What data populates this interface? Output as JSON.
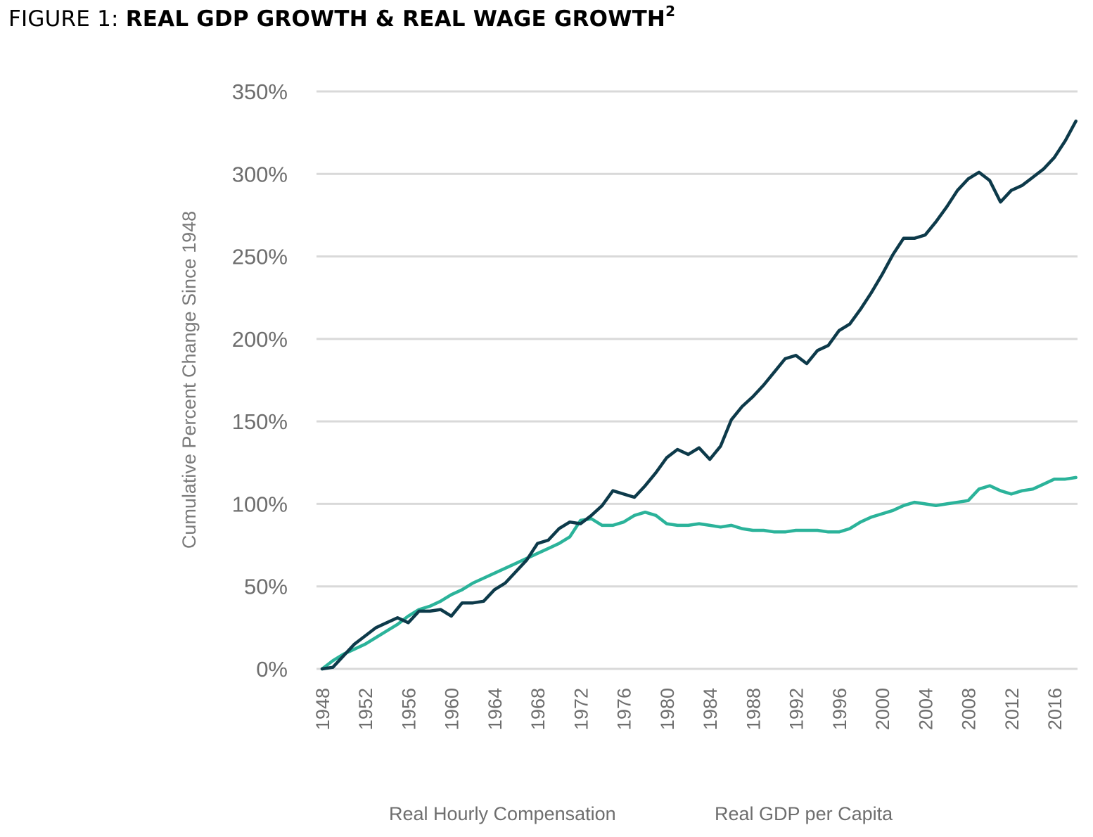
{
  "figure": {
    "prefix": "FIGURE 1: ",
    "title": "REAL GDP GROWTH & REAL WAGE GROWTH",
    "superscript": "2"
  },
  "chart_data": {
    "type": "line",
    "title": "REAL GDP GROWTH & REAL WAGE GROWTH",
    "xlabel": "",
    "ylabel": "Cumulative Percent Change Since 1948",
    "ylim": [
      0,
      350
    ],
    "xlim": [
      1948,
      2018
    ],
    "y_ticks": [
      0,
      50,
      100,
      150,
      200,
      250,
      300,
      350
    ],
    "y_tick_labels": [
      "0%",
      "50%",
      "100%",
      "150%",
      "200%",
      "250%",
      "300%",
      "350%"
    ],
    "x_ticks": [
      1948,
      1952,
      1956,
      1960,
      1964,
      1968,
      1972,
      1976,
      1980,
      1984,
      1988,
      1992,
      1996,
      2000,
      2004,
      2008,
      2012,
      2016
    ],
    "x_tick_labels": [
      "1948",
      "1952",
      "1956",
      "1960",
      "1964",
      "1968",
      "1972",
      "1976",
      "1980",
      "1984",
      "1988",
      "1992",
      "1996",
      "2000",
      "2004",
      "2008",
      "2012",
      "2016"
    ],
    "grid": true,
    "legend_position": "bottom",
    "x": [
      1948,
      1949,
      1950,
      1951,
      1952,
      1953,
      1954,
      1955,
      1956,
      1957,
      1958,
      1959,
      1960,
      1961,
      1962,
      1963,
      1964,
      1965,
      1966,
      1967,
      1968,
      1969,
      1970,
      1971,
      1972,
      1973,
      1974,
      1975,
      1976,
      1977,
      1978,
      1979,
      1980,
      1981,
      1982,
      1983,
      1984,
      1985,
      1986,
      1987,
      1988,
      1989,
      1990,
      1991,
      1992,
      1993,
      1994,
      1995,
      1996,
      1997,
      1998,
      1999,
      2000,
      2001,
      2002,
      2003,
      2004,
      2005,
      2006,
      2007,
      2008,
      2009,
      2010,
      2011,
      2012,
      2013,
      2014,
      2015,
      2016,
      2017,
      2018
    ],
    "series": [
      {
        "name": "Real Hourly Compensation",
        "color": "#2bb39a",
        "values": [
          0,
          5,
          9,
          12,
          15,
          19,
          23,
          27,
          32,
          36,
          38,
          41,
          45,
          48,
          52,
          55,
          58,
          61,
          64,
          67,
          70,
          73,
          76,
          80,
          90,
          91,
          87,
          87,
          89,
          93,
          95,
          93,
          88,
          87,
          87,
          88,
          87,
          86,
          87,
          85,
          84,
          84,
          83,
          83,
          84,
          84,
          84,
          83,
          83,
          85,
          89,
          92,
          94,
          96,
          99,
          101,
          100,
          99,
          100,
          101,
          102,
          109,
          111,
          108,
          106,
          108,
          109,
          112,
          115,
          115,
          116
        ]
      },
      {
        "name": "Real GDP per Capita",
        "color": "#0d3a4a",
        "values": [
          0,
          1,
          8,
          15,
          20,
          25,
          28,
          31,
          28,
          35,
          35,
          36,
          32,
          40,
          40,
          41,
          48,
          52,
          59,
          66,
          76,
          78,
          85,
          89,
          88,
          93,
          99,
          108,
          106,
          104,
          111,
          119,
          128,
          133,
          130,
          134,
          127,
          135,
          151,
          159,
          165,
          172,
          180,
          188,
          190,
          185,
          193,
          196,
          205,
          209,
          218,
          228,
          239,
          251,
          261,
          261,
          263,
          271,
          280,
          290,
          297,
          301,
          296,
          283,
          290,
          293,
          298,
          303,
          310,
          320,
          332
        ]
      }
    ]
  }
}
